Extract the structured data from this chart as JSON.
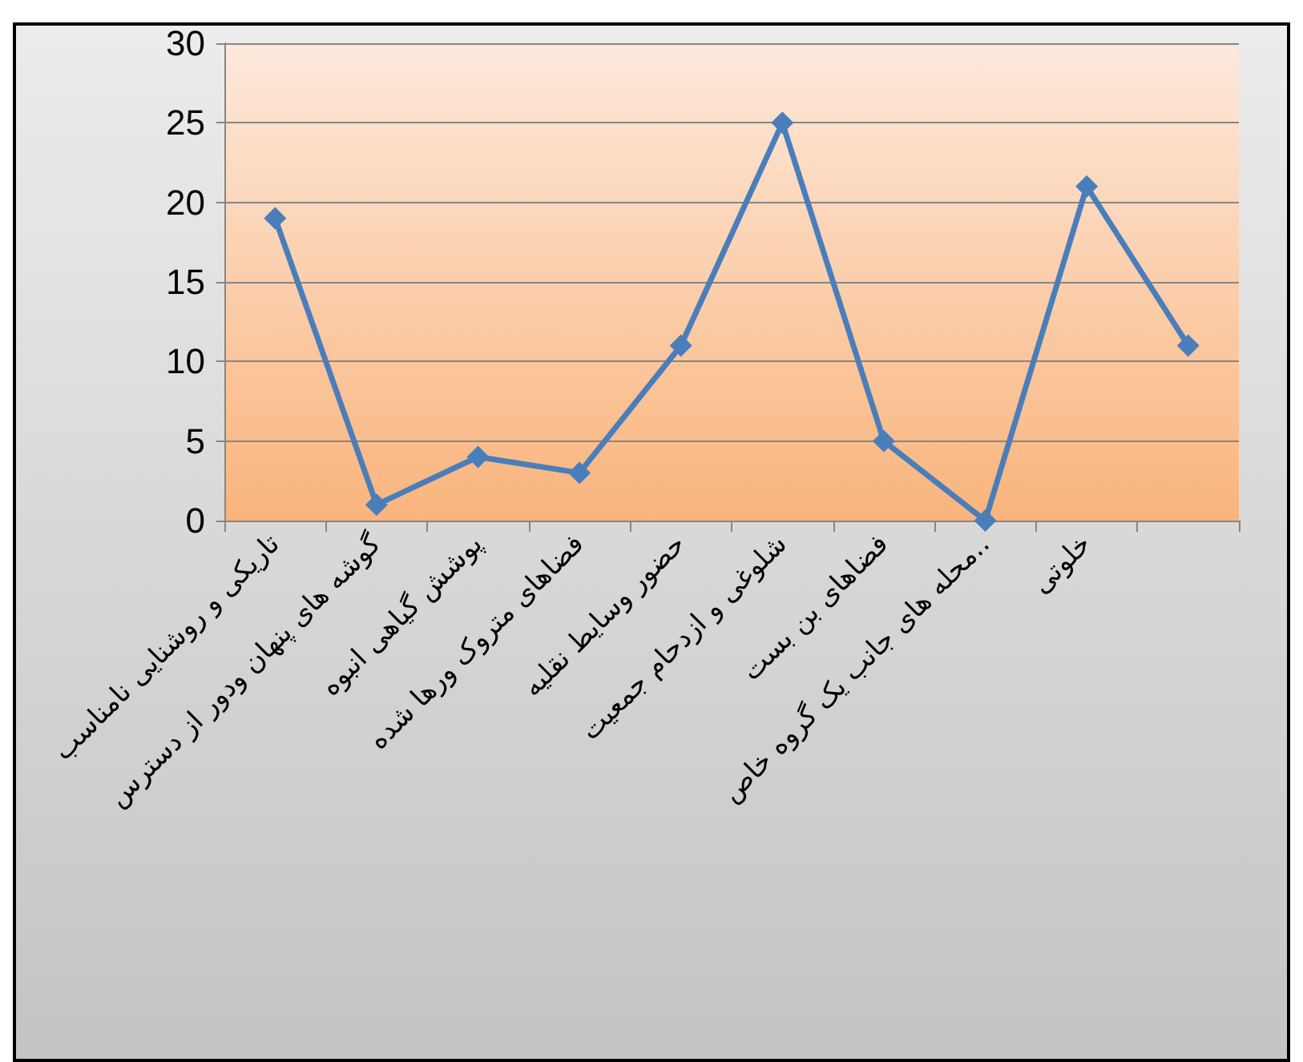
{
  "chart_data": {
    "type": "line",
    "categories": [
      "تاریکی و روشنایی نامناسب",
      "گوشه های پنهان ودور از دسترس",
      "پوشش گیاهی انبوه",
      "فضاهای متروک ورها شده",
      "حضور وسایط نقلیه",
      "شلوغی و ازدحام جمعیت",
      "فضاهای بن بست",
      "محله های جانب یک گروه خاص..",
      "خلوتی",
      null
    ],
    "series": [
      {
        "color": "#4a7ebb",
        "values": [
          19,
          1,
          4,
          3,
          11,
          25,
          5,
          0,
          21,
          11
        ]
      }
    ],
    "ylim": [
      0,
      30
    ],
    "yticks": [
      0,
      5,
      10,
      15,
      20,
      25,
      30
    ],
    "grid": "y",
    "marker": "diamond",
    "line_style": "solid"
  }
}
